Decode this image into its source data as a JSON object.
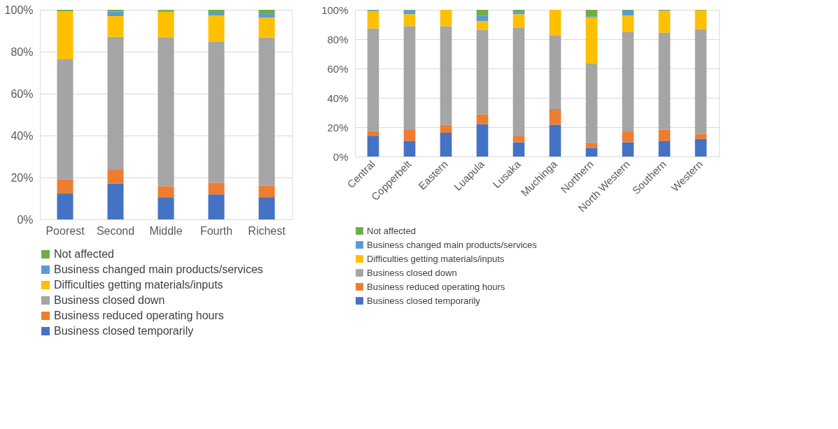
{
  "chart_data": [
    {
      "type": "bar",
      "stacked": true,
      "grid": "y",
      "legend": "bottom",
      "categories": [
        "Poorest",
        "Second",
        "Middle",
        "Fourth",
        "Richest"
      ],
      "ylim": [
        0,
        100
      ],
      "yticks": [
        {
          "value": 0,
          "label": "0%"
        },
        {
          "value": 20,
          "label": "20%"
        },
        {
          "value": 40,
          "label": "40%"
        },
        {
          "value": 60,
          "label": "60%"
        },
        {
          "value": 80,
          "label": "80%"
        },
        {
          "value": 100,
          "label": "100%"
        }
      ],
      "series": [
        {
          "name": "Business closed temporarily",
          "color": "#4472c4",
          "values": [
            12.3,
            17.1,
            10.3,
            11.9,
            10.6
          ]
        },
        {
          "name": "Business reduced operating hours",
          "color": "#ed7d31",
          "values": [
            6.9,
            6.6,
            5.5,
            5.6,
            5.6
          ]
        },
        {
          "name": "Business closed down",
          "color": "#a5a5a5",
          "values": [
            57.1,
            63.4,
            70.9,
            67.2,
            70.6
          ]
        },
        {
          "name": "Difficulties getting materials/inputs",
          "color": "#ffc000",
          "values": [
            22.9,
            9.9,
            12.3,
            12.6,
            9.5
          ]
        },
        {
          "name": "Business changed main products/services",
          "color": "#5b9bd5",
          "values": [
            0.0,
            2.2,
            0.4,
            1.4,
            2.0
          ]
        },
        {
          "name": "Not affected",
          "color": "#70ad47",
          "values": [
            0.8,
            0.8,
            0.6,
            1.3,
            1.7
          ]
        }
      ]
    },
    {
      "type": "bar",
      "stacked": true,
      "grid": "y",
      "legend": "bottom",
      "categories": [
        "Central",
        "Copperbelt",
        "Eastern",
        "Luapula",
        "Lusaka",
        "Muchinga",
        "Northern",
        "North Western",
        "Southern",
        "Western"
      ],
      "ylim": [
        0,
        100
      ],
      "yticks": [
        {
          "value": 0,
          "label": "0%"
        },
        {
          "value": 20,
          "label": "20%"
        },
        {
          "value": 40,
          "label": "40%"
        },
        {
          "value": 60,
          "label": "60%"
        },
        {
          "value": 80,
          "label": "80%"
        },
        {
          "value": 100,
          "label": "100%"
        }
      ],
      "series": [
        {
          "name": "Business closed temporarily",
          "color": "#4472c4",
          "values": [
            14.2,
            10.6,
            16.2,
            22.0,
            9.7,
            21.7,
            5.9,
            9.7,
            10.5,
            12.0
          ]
        },
        {
          "name": "Business reduced operating hours",
          "color": "#ed7d31",
          "values": [
            3.2,
            7.9,
            5.3,
            6.8,
            4.5,
            10.7,
            3.5,
            7.4,
            7.7,
            3.5
          ]
        },
        {
          "name": "Business closed down",
          "color": "#a5a5a5",
          "values": [
            69.9,
            70.4,
            67.3,
            57.6,
            73.4,
            50.3,
            53.9,
            67.7,
            66.2,
            71.3
          ]
        },
        {
          "name": "Difficulties getting materials/inputs",
          "color": "#ffc000",
          "values": [
            11.8,
            8.1,
            11.2,
            5.9,
            9.4,
            17.3,
            31.5,
            11.3,
            14.8,
            12.9
          ]
        },
        {
          "name": "Business changed main products/services",
          "color": "#5b9bd5",
          "values": [
            0.6,
            2.7,
            0.0,
            3.5,
            1.5,
            0.0,
            0.7,
            3.4,
            0.2,
            0.0
          ]
        },
        {
          "name": "Not affected",
          "color": "#70ad47",
          "values": [
            0.3,
            0.3,
            0.0,
            4.2,
            1.5,
            0.0,
            4.5,
            0.5,
            0.6,
            0.3
          ]
        }
      ]
    }
  ]
}
